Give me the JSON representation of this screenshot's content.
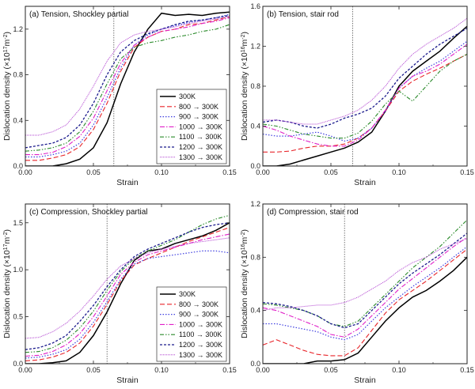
{
  "strain_label": "Strain",
  "legend_entries": [
    "300K",
    "800 → 300K",
    "900 → 300K",
    "1000 → 300K",
    "1100 → 300K",
    "1200 → 300K",
    "1300 → 300K"
  ],
  "series_styles": [
    {
      "color": "#000000",
      "dash": "",
      "width": 1.5
    },
    {
      "color": "#e8252a",
      "dash": "6,3",
      "width": 1.1
    },
    {
      "color": "#4040e0",
      "dash": "1.5,2",
      "width": 1.2
    },
    {
      "color": "#e020c8",
      "dash": "6,2,1.5,2",
      "width": 1.1
    },
    {
      "color": "#2a8a2a",
      "dash": "5,2,1.5,2,1.5,2",
      "width": 1.1
    },
    {
      "color": "#1a1a8c",
      "dash": "3,2",
      "width": 1.3
    },
    {
      "color": "#b040d0",
      "dash": "1,1",
      "width": 1.0
    }
  ],
  "chart_data": [
    {
      "type": "line",
      "title": "(a) Tension, Shockley partial",
      "xlabel": "Strain",
      "ylabel_main": "Dislocation density (×10",
      "ylabel_exp": "17",
      "ylabel_unit": "m",
      "ylabel_unit_exp": "-2",
      "ylabel_close": ")",
      "xlim": [
        0,
        0.15
      ],
      "ylim": [
        0,
        1.4
      ],
      "xticks": [
        "0.00",
        "0.05",
        "0.10",
        "0.15"
      ],
      "yticks": [
        "0.0",
        "0.4",
        "0.8",
        "1.2"
      ],
      "ytick_values": [
        0,
        0.4,
        0.8,
        1.2
      ],
      "vline": 0.065,
      "legend": true,
      "x": [
        0,
        0.01,
        0.02,
        0.03,
        0.04,
        0.05,
        0.06,
        0.07,
        0.08,
        0.09,
        0.1,
        0.11,
        0.12,
        0.13,
        0.14,
        0.15
      ],
      "series": [
        {
          "name": "300K",
          "values": [
            0.0,
            0.0,
            0.0,
            0.02,
            0.06,
            0.16,
            0.38,
            0.72,
            1.0,
            1.2,
            1.34,
            1.32,
            1.33,
            1.32,
            1.34,
            1.35
          ]
        },
        {
          "name": "800 → 300K",
          "values": [
            0.05,
            0.05,
            0.07,
            0.1,
            0.17,
            0.32,
            0.55,
            0.83,
            1.04,
            1.13,
            1.18,
            1.2,
            1.24,
            1.25,
            1.28,
            1.31
          ]
        },
        {
          "name": "900 → 300K",
          "values": [
            0.08,
            0.08,
            0.1,
            0.13,
            0.2,
            0.36,
            0.6,
            0.86,
            1.06,
            1.15,
            1.2,
            1.23,
            1.26,
            1.28,
            1.3,
            1.33
          ]
        },
        {
          "name": "1000 → 300K",
          "values": [
            0.1,
            0.1,
            0.12,
            0.17,
            0.26,
            0.42,
            0.66,
            0.9,
            1.06,
            1.13,
            1.18,
            1.2,
            1.22,
            1.25,
            1.27,
            1.3
          ]
        },
        {
          "name": "1100 → 300K",
          "values": [
            0.13,
            0.14,
            0.16,
            0.2,
            0.3,
            0.48,
            0.72,
            0.94,
            1.04,
            1.08,
            1.1,
            1.13,
            1.15,
            1.18,
            1.2,
            1.24
          ]
        },
        {
          "name": "1200 → 300K",
          "values": [
            0.16,
            0.18,
            0.2,
            0.25,
            0.36,
            0.55,
            0.8,
            1.0,
            1.1,
            1.16,
            1.2,
            1.24,
            1.27,
            1.28,
            1.3,
            1.32
          ]
        },
        {
          "name": "1300 → 300K",
          "values": [
            0.27,
            0.27,
            0.3,
            0.36,
            0.5,
            0.7,
            0.92,
            1.08,
            1.15,
            1.18,
            1.2,
            1.22,
            1.25,
            1.27,
            1.29,
            1.31
          ]
        }
      ]
    },
    {
      "type": "line",
      "title": "(b) Tension, stair rod",
      "xlabel": "Strain",
      "ylabel_main": "Dislocation density (×10",
      "ylabel_exp": "16",
      "ylabel_unit": "m",
      "ylabel_unit_exp": "-2",
      "ylabel_close": ")",
      "xlim": [
        0,
        0.15
      ],
      "ylim": [
        0,
        1.6
      ],
      "xticks": [
        "0.00",
        "0.05",
        "0.10",
        "0.15"
      ],
      "yticks": [
        "0.0",
        "0.4",
        "0.8",
        "1.2",
        "1.6"
      ],
      "ytick_values": [
        0,
        0.4,
        0.8,
        1.2,
        1.6
      ],
      "vline": 0.066,
      "legend": false,
      "x": [
        0,
        0.01,
        0.02,
        0.03,
        0.04,
        0.05,
        0.06,
        0.07,
        0.08,
        0.09,
        0.1,
        0.11,
        0.12,
        0.13,
        0.14,
        0.15
      ],
      "series": [
        {
          "name": "300K",
          "values": [
            0.0,
            0.0,
            0.02,
            0.06,
            0.1,
            0.14,
            0.18,
            0.24,
            0.34,
            0.55,
            0.8,
            0.95,
            1.05,
            1.15,
            1.28,
            1.4
          ]
        },
        {
          "name": "800 → 300K",
          "values": [
            0.14,
            0.14,
            0.15,
            0.18,
            0.2,
            0.2,
            0.22,
            0.28,
            0.38,
            0.55,
            0.75,
            0.85,
            0.92,
            0.98,
            1.05,
            1.12
          ]
        },
        {
          "name": "900 → 300K",
          "values": [
            0.32,
            0.3,
            0.3,
            0.32,
            0.34,
            0.3,
            0.25,
            0.28,
            0.38,
            0.55,
            0.78,
            0.9,
            0.98,
            1.05,
            1.15,
            1.25
          ]
        },
        {
          "name": "1000 → 300K",
          "values": [
            0.4,
            0.36,
            0.3,
            0.26,
            0.22,
            0.2,
            0.2,
            0.26,
            0.38,
            0.56,
            0.78,
            0.9,
            0.95,
            1.02,
            1.12,
            1.22
          ]
        },
        {
          "name": "1100 → 300K",
          "values": [
            0.42,
            0.4,
            0.36,
            0.32,
            0.3,
            0.28,
            0.28,
            0.33,
            0.45,
            0.62,
            0.75,
            0.65,
            0.8,
            0.95,
            1.05,
            1.12
          ]
        },
        {
          "name": "1200 → 300K",
          "values": [
            0.44,
            0.46,
            0.44,
            0.4,
            0.38,
            0.42,
            0.48,
            0.52,
            0.58,
            0.7,
            0.88,
            1.0,
            1.12,
            1.22,
            1.3,
            1.38
          ]
        },
        {
          "name": "1300 → 300K",
          "values": [
            0.46,
            0.46,
            0.44,
            0.42,
            0.42,
            0.46,
            0.5,
            0.56,
            0.66,
            0.8,
            0.98,
            1.12,
            1.22,
            1.3,
            1.38,
            1.48
          ]
        }
      ]
    },
    {
      "type": "line",
      "title": "(c) Compression, Shockley partial",
      "xlabel": "Strain",
      "ylabel_main": "Dislocation density (×10",
      "ylabel_exp": "17",
      "ylabel_unit": "m",
      "ylabel_unit_exp": "-2",
      "ylabel_close": ")",
      "xlim": [
        0,
        0.15
      ],
      "ylim": [
        0,
        1.7
      ],
      "xticks": [
        "0.00",
        "0.05",
        "0.10",
        "0.15"
      ],
      "yticks": [
        "0.0",
        "0.5",
        "1.0",
        "1.5"
      ],
      "ytick_values": [
        0,
        0.5,
        1.0,
        1.5
      ],
      "vline": 0.06,
      "legend": true,
      "x": [
        0,
        0.01,
        0.02,
        0.03,
        0.04,
        0.05,
        0.06,
        0.07,
        0.08,
        0.09,
        0.1,
        0.11,
        0.12,
        0.13,
        0.14,
        0.15
      ],
      "series": [
        {
          "name": "300K",
          "values": [
            0.0,
            0.0,
            0.01,
            0.03,
            0.12,
            0.3,
            0.55,
            0.85,
            1.1,
            1.2,
            1.22,
            1.28,
            1.32,
            1.36,
            1.42,
            1.5
          ]
        },
        {
          "name": "800 → 300K",
          "values": [
            0.03,
            0.04,
            0.07,
            0.12,
            0.22,
            0.4,
            0.63,
            0.88,
            1.05,
            1.12,
            1.18,
            1.24,
            1.3,
            1.35,
            1.4,
            1.45
          ]
        },
        {
          "name": "900 → 300K",
          "values": [
            0.06,
            0.07,
            0.1,
            0.15,
            0.26,
            0.44,
            0.66,
            0.9,
            1.06,
            1.12,
            1.14,
            1.16,
            1.18,
            1.2,
            1.2,
            1.18
          ]
        },
        {
          "name": "1000 → 300K",
          "values": [
            0.08,
            0.09,
            0.13,
            0.2,
            0.32,
            0.5,
            0.72,
            0.95,
            1.08,
            1.16,
            1.2,
            1.24,
            1.28,
            1.32,
            1.35,
            1.38
          ]
        },
        {
          "name": "1100 → 300K",
          "values": [
            0.12,
            0.13,
            0.17,
            0.25,
            0.38,
            0.56,
            0.78,
            0.98,
            1.12,
            1.2,
            1.26,
            1.32,
            1.4,
            1.48,
            1.54,
            1.58
          ]
        },
        {
          "name": "1200 → 300K",
          "values": [
            0.15,
            0.17,
            0.22,
            0.3,
            0.45,
            0.62,
            0.82,
            1.0,
            1.14,
            1.22,
            1.28,
            1.34,
            1.4,
            1.45,
            1.48,
            1.5
          ]
        },
        {
          "name": "1300 → 300K",
          "values": [
            0.27,
            0.28,
            0.34,
            0.43,
            0.56,
            0.72,
            0.9,
            1.04,
            1.12,
            1.18,
            1.22,
            1.25,
            1.28,
            1.3,
            1.32,
            1.34
          ]
        }
      ]
    },
    {
      "type": "line",
      "title": "(d) Compression, stair rod",
      "xlabel": "Strain",
      "ylabel_main": "Dislocation density (×10",
      "ylabel_exp": "16",
      "ylabel_unit": "m",
      "ylabel_unit_exp": "-2",
      "ylabel_close": ")",
      "xlim": [
        0,
        0.15
      ],
      "ylim": [
        0,
        1.2
      ],
      "xticks": [
        "0.00",
        "0.05",
        "0.10",
        "0.15"
      ],
      "yticks": [
        "0.0",
        "0.4",
        "0.8",
        "1.2"
      ],
      "ytick_values": [
        0,
        0.4,
        0.8,
        1.2
      ],
      "vline": 0.06,
      "legend": false,
      "x": [
        0,
        0.01,
        0.02,
        0.03,
        0.04,
        0.05,
        0.06,
        0.07,
        0.08,
        0.09,
        0.1,
        0.11,
        0.12,
        0.13,
        0.14,
        0.15
      ],
      "series": [
        {
          "name": "300K",
          "values": [
            0.0,
            0.0,
            0.0,
            0.0,
            0.02,
            0.02,
            0.03,
            0.08,
            0.2,
            0.32,
            0.42,
            0.5,
            0.55,
            0.62,
            0.7,
            0.8
          ]
        },
        {
          "name": "800 → 300K",
          "values": [
            0.14,
            0.18,
            0.14,
            0.1,
            0.07,
            0.06,
            0.06,
            0.12,
            0.25,
            0.38,
            0.48,
            0.55,
            0.62,
            0.7,
            0.78,
            0.86
          ]
        },
        {
          "name": "900 → 300K",
          "values": [
            0.3,
            0.3,
            0.28,
            0.26,
            0.24,
            0.2,
            0.18,
            0.22,
            0.32,
            0.42,
            0.5,
            0.58,
            0.65,
            0.72,
            0.8,
            0.88
          ]
        },
        {
          "name": "1000 → 300K",
          "values": [
            0.42,
            0.4,
            0.36,
            0.32,
            0.28,
            0.22,
            0.2,
            0.26,
            0.36,
            0.46,
            0.56,
            0.64,
            0.72,
            0.8,
            0.88,
            0.95
          ]
        },
        {
          "name": "1100 → 300K",
          "values": [
            0.45,
            0.44,
            0.42,
            0.4,
            0.36,
            0.3,
            0.28,
            0.32,
            0.42,
            0.52,
            0.62,
            0.72,
            0.8,
            0.88,
            0.98,
            1.08
          ]
        },
        {
          "name": "1200 → 300K",
          "values": [
            0.46,
            0.45,
            0.43,
            0.4,
            0.36,
            0.3,
            0.27,
            0.3,
            0.4,
            0.5,
            0.6,
            0.68,
            0.75,
            0.82,
            0.9,
            0.98
          ]
        },
        {
          "name": "1300 → 300K",
          "values": [
            0.4,
            0.42,
            0.42,
            0.43,
            0.44,
            0.44,
            0.46,
            0.5,
            0.56,
            0.62,
            0.7,
            0.76,
            0.8,
            0.86,
            0.9,
            0.94
          ]
        }
      ]
    }
  ]
}
